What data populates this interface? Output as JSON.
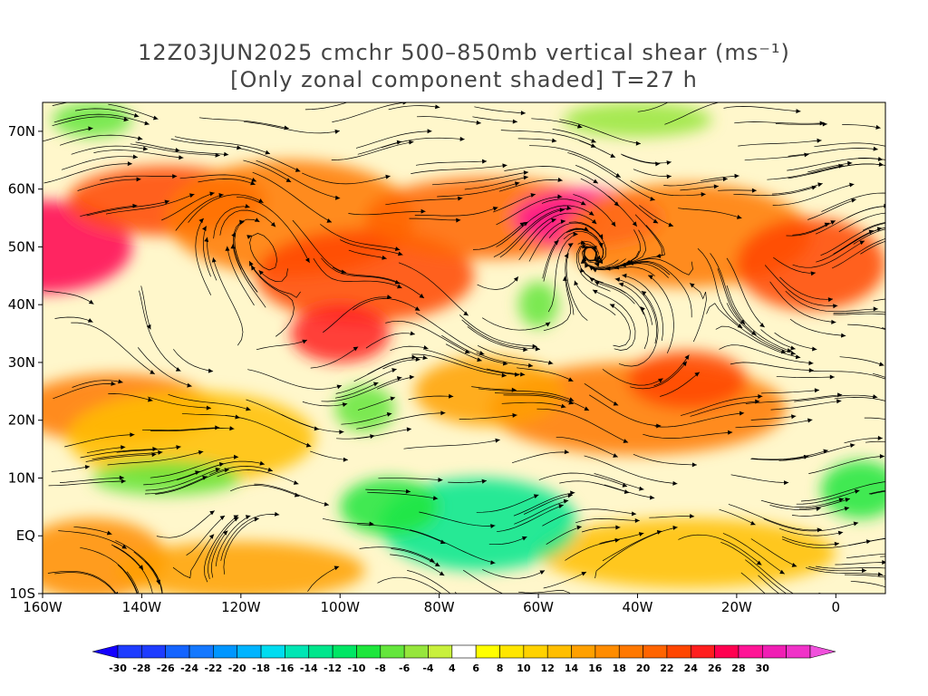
{
  "title": {
    "line1": "12Z03JUN2025 cmchr 500–850mb vertical shear (ms⁻¹)",
    "line2": "[Only zonal component shaded] T=27 h"
  },
  "map": {
    "lon_range": [
      -160,
      10
    ],
    "lat_range": [
      -10,
      75
    ],
    "x_ticks": [
      {
        "lon": -160,
        "label": "160W"
      },
      {
        "lon": -140,
        "label": "140W"
      },
      {
        "lon": -120,
        "label": "120W"
      },
      {
        "lon": -100,
        "label": "100W"
      },
      {
        "lon": -80,
        "label": "80W"
      },
      {
        "lon": -60,
        "label": "60W"
      },
      {
        "lon": -40,
        "label": "40W"
      },
      {
        "lon": -20,
        "label": "20W"
      },
      {
        "lon": 0,
        "label": "0"
      }
    ],
    "y_ticks": [
      {
        "lat": 70,
        "label": "70N"
      },
      {
        "lat": 60,
        "label": "60N"
      },
      {
        "lat": 50,
        "label": "50N"
      },
      {
        "lat": 40,
        "label": "40N"
      },
      {
        "lat": 30,
        "label": "30N"
      },
      {
        "lat": 20,
        "label": "20N"
      },
      {
        "lat": 10,
        "label": "10N"
      },
      {
        "lat": 0,
        "label": "EQ"
      },
      {
        "lat": -10,
        "label": "10S"
      }
    ],
    "shading": [
      {
        "lon": -160,
        "lat": 50,
        "rx": 18,
        "ry": 8,
        "value": 24
      },
      {
        "lon": -135,
        "lat": 58,
        "rx": 20,
        "ry": 6,
        "value": 20
      },
      {
        "lon": -110,
        "lat": 55,
        "rx": 25,
        "ry": 10,
        "value": 16
      },
      {
        "lon": -95,
        "lat": 45,
        "rx": 22,
        "ry": 8,
        "value": 20
      },
      {
        "lon": -100,
        "lat": 35,
        "rx": 10,
        "ry": 5,
        "value": 22
      },
      {
        "lon": -70,
        "lat": 55,
        "rx": 25,
        "ry": 7,
        "value": 18
      },
      {
        "lon": -50,
        "lat": 55,
        "rx": 15,
        "ry": 5,
        "value": 26
      },
      {
        "lon": -30,
        "lat": 52,
        "rx": 25,
        "ry": 9,
        "value": 16
      },
      {
        "lon": -5,
        "lat": 47,
        "rx": 15,
        "ry": 8,
        "value": 20
      },
      {
        "lon": -145,
        "lat": 22,
        "rx": 20,
        "ry": 6,
        "value": 16
      },
      {
        "lon": -130,
        "lat": 17,
        "rx": 25,
        "ry": 8,
        "value": 10
      },
      {
        "lon": -40,
        "lat": 22,
        "rx": 30,
        "ry": 8,
        "value": 16
      },
      {
        "lon": -30,
        "lat": 27,
        "rx": 12,
        "ry": 5,
        "value": 20
      },
      {
        "lon": -70,
        "lat": 25,
        "rx": 15,
        "ry": 6,
        "value": 12
      },
      {
        "lon": -150,
        "lat": -4,
        "rx": 15,
        "ry": 7,
        "value": 14
      },
      {
        "lon": -120,
        "lat": -6,
        "rx": 25,
        "ry": 5,
        "value": 12
      },
      {
        "lon": -30,
        "lat": -3,
        "rx": 30,
        "ry": 6,
        "value": 10
      },
      {
        "lon": -135,
        "lat": 10,
        "rx": 15,
        "ry": 3,
        "value": -10
      },
      {
        "lon": -72,
        "lat": 2,
        "rx": 20,
        "ry": 8,
        "value": -16
      },
      {
        "lon": -90,
        "lat": 5,
        "rx": 10,
        "ry": 5,
        "value": -12
      },
      {
        "lon": -60,
        "lat": 40,
        "rx": 4,
        "ry": 4,
        "value": -10
      },
      {
        "lon": -95,
        "lat": 22,
        "rx": 6,
        "ry": 4,
        "value": -10
      },
      {
        "lon": 5,
        "lat": 8,
        "rx": 8,
        "ry": 5,
        "value": -12
      },
      {
        "lon": -40,
        "lat": 72,
        "rx": 15,
        "ry": 3,
        "value": -8
      },
      {
        "lon": -150,
        "lat": 72,
        "rx": 8,
        "ry": 3,
        "value": -10
      }
    ]
  },
  "colorbar": {
    "levels": [
      -30,
      -28,
      -26,
      -24,
      -22,
      -20,
      -18,
      -16,
      -14,
      -12,
      -10,
      -8,
      -6,
      -4,
      4,
      6,
      8,
      10,
      12,
      14,
      16,
      18,
      20,
      22,
      24,
      26,
      28,
      30
    ],
    "labels": [
      "-30",
      "-28",
      "-26",
      "-24",
      "-22",
      "-20",
      "-18",
      "-16",
      "-14",
      "-12",
      "-10",
      "-8",
      "-6",
      "-4",
      "4",
      "6",
      "8",
      "10",
      "12",
      "14",
      "16",
      "18",
      "20",
      "22",
      "24",
      "26",
      "28",
      "30"
    ],
    "colors": [
      "#1e3cff",
      "#1e3cff",
      "#1464ff",
      "#1478ff",
      "#0096ff",
      "#00b4ff",
      "#00dcf0",
      "#00e6b4",
      "#00e68c",
      "#00e664",
      "#1ee63c",
      "#64e63c",
      "#96e63c",
      "#c8f03c",
      "#ffffff",
      "#ffff00",
      "#ffe600",
      "#ffd200",
      "#ffbe00",
      "#ffa000",
      "#ff8c00",
      "#ff7800",
      "#ff6400",
      "#ff4600",
      "#ff1e1e",
      "#ff0050",
      "#ff1496",
      "#f01eb4",
      "#f032c8"
    ],
    "under_color": "#1400ff",
    "over_color": "#f050dc"
  }
}
